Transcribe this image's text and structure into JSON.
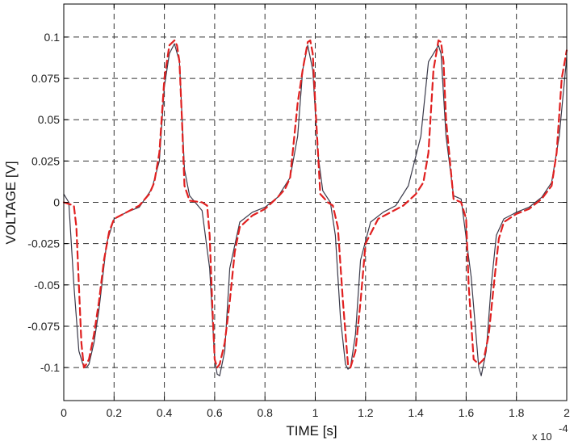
{
  "chart_data": {
    "type": "line",
    "title": "",
    "xlabel": "TIME [s]",
    "ylabel": "VOLTAGE [V]",
    "x_multiplier_label": {
      "base": "x 10",
      "exponent": "-4"
    },
    "xlim": [
      0,
      2
    ],
    "ylim": [
      -0.12,
      0.12
    ],
    "x_ticks": [
      "0",
      "0.2",
      "0.4",
      "0.6",
      "0.8",
      "1",
      "1.2",
      "1.4",
      "1.6",
      "1.8",
      "2"
    ],
    "x_tick_values": [
      0,
      0.2,
      0.4,
      0.6,
      0.8,
      1.0,
      1.2,
      1.4,
      1.6,
      1.8,
      2.0
    ],
    "y_ticks": [
      "0.1",
      "0.075",
      "0.05",
      "0.025",
      "0",
      "-0.025",
      "-0.05",
      "-0.075",
      "-0.1"
    ],
    "y_tick_values": [
      0.1,
      0.075,
      0.05,
      0.025,
      0,
      -0.025,
      -0.05,
      -0.075,
      -0.1
    ],
    "grid": true,
    "series": [
      {
        "color": "#3a3a4a",
        "style": "solid",
        "x": [
          0,
          0.02,
          0.04,
          0.06,
          0.08,
          0.09,
          0.1,
          0.12,
          0.14,
          0.17,
          0.2,
          0.25,
          0.3,
          0.35,
          0.38,
          0.4,
          0.42,
          0.44,
          0.46,
          0.48,
          0.5,
          0.55,
          0.58,
          0.6,
          0.61,
          0.62,
          0.64,
          0.66,
          0.7,
          0.75,
          0.8,
          0.85,
          0.9,
          0.93,
          0.95,
          0.97,
          0.99,
          1.01,
          1.03,
          1.06,
          1.08,
          1.1,
          1.12,
          1.13,
          1.14,
          1.16,
          1.18,
          1.22,
          1.27,
          1.32,
          1.37,
          1.42,
          1.45,
          1.47,
          1.49,
          1.5,
          1.52,
          1.55,
          1.58,
          1.62,
          1.65,
          1.66,
          1.68,
          1.7,
          1.72,
          1.75,
          1.8,
          1.85,
          1.9,
          1.94,
          1.97,
          2.0
        ],
        "y": [
          0.005,
          0.0,
          -0.05,
          -0.09,
          -0.1,
          -0.1,
          -0.098,
          -0.085,
          -0.065,
          -0.025,
          -0.01,
          -0.006,
          -0.003,
          0.008,
          0.025,
          0.07,
          0.09,
          0.096,
          0.085,
          0.02,
          0.004,
          -0.005,
          -0.04,
          -0.095,
          -0.104,
          -0.105,
          -0.09,
          -0.04,
          -0.012,
          -0.006,
          -0.003,
          0.003,
          0.015,
          0.04,
          0.08,
          0.095,
          0.08,
          0.03,
          0.007,
          0.0,
          -0.02,
          -0.07,
          -0.098,
          -0.101,
          -0.1,
          -0.08,
          -0.035,
          -0.012,
          -0.006,
          -0.002,
          0.01,
          0.04,
          0.085,
          0.09,
          0.095,
          0.09,
          0.04,
          0.004,
          0.002,
          -0.045,
          -0.1,
          -0.105,
          -0.09,
          -0.05,
          -0.02,
          -0.01,
          -0.006,
          -0.003,
          0.003,
          0.012,
          0.04,
          0.088
        ]
      },
      {
        "color": "#e02020",
        "style": "dashed",
        "x": [
          0,
          0.04,
          0.05,
          0.06,
          0.07,
          0.08,
          0.09,
          0.1,
          0.12,
          0.14,
          0.16,
          0.18,
          0.2,
          0.25,
          0.3,
          0.34,
          0.36,
          0.38,
          0.4,
          0.42,
          0.44,
          0.45,
          0.46,
          0.47,
          0.48,
          0.5,
          0.55,
          0.57,
          0.58,
          0.59,
          0.6,
          0.61,
          0.62,
          0.64,
          0.66,
          0.68,
          0.7,
          0.75,
          0.8,
          0.85,
          0.88,
          0.9,
          0.93,
          0.95,
          0.97,
          0.98,
          0.99,
          1.0,
          1.02,
          1.05,
          1.07,
          1.09,
          1.11,
          1.13,
          1.14,
          1.16,
          1.18,
          1.2,
          1.25,
          1.3,
          1.35,
          1.4,
          1.43,
          1.45,
          1.47,
          1.49,
          1.5,
          1.51,
          1.52,
          1.55,
          1.58,
          1.6,
          1.61,
          1.63,
          1.65,
          1.67,
          1.69,
          1.71,
          1.73,
          1.75,
          1.8,
          1.85,
          1.9,
          1.94,
          1.96,
          1.98,
          2.0
        ],
        "y": [
          0.0,
          -0.002,
          -0.015,
          -0.05,
          -0.085,
          -0.1,
          -0.098,
          -0.095,
          -0.08,
          -0.06,
          -0.035,
          -0.018,
          -0.01,
          -0.006,
          -0.002,
          0.005,
          0.012,
          0.03,
          0.075,
          0.095,
          0.098,
          0.095,
          0.085,
          0.05,
          0.01,
          0.001,
          0.0,
          -0.002,
          -0.02,
          -0.06,
          -0.095,
          -0.1,
          -0.098,
          -0.085,
          -0.06,
          -0.03,
          -0.015,
          -0.008,
          -0.004,
          0.003,
          0.008,
          0.015,
          0.06,
          0.08,
          0.097,
          0.098,
          0.09,
          0.06,
          0.005,
          0.0,
          -0.002,
          -0.015,
          -0.06,
          -0.098,
          -0.1,
          -0.09,
          -0.06,
          -0.025,
          -0.01,
          -0.006,
          -0.002,
          0.005,
          0.012,
          0.03,
          0.08,
          0.098,
          0.097,
          0.085,
          0.05,
          0.002,
          0.0,
          -0.01,
          -0.05,
          -0.095,
          -0.098,
          -0.095,
          -0.08,
          -0.05,
          -0.022,
          -0.012,
          -0.007,
          -0.004,
          0.002,
          0.01,
          0.03,
          0.075,
          0.092
        ]
      }
    ]
  }
}
